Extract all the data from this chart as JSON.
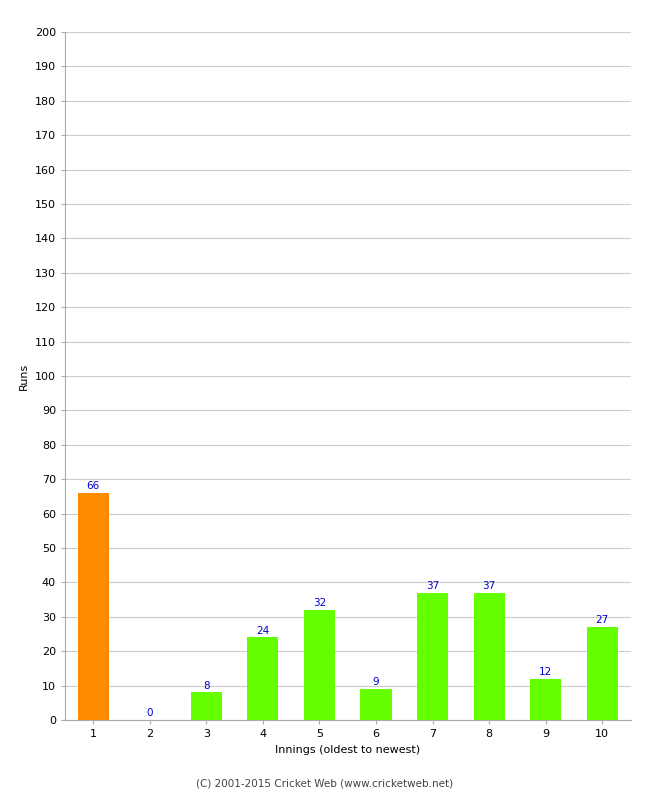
{
  "categories": [
    1,
    2,
    3,
    4,
    5,
    6,
    7,
    8,
    9,
    10
  ],
  "values": [
    66,
    0,
    8,
    24,
    32,
    9,
    37,
    37,
    12,
    27
  ],
  "bar_colors": [
    "#ff8c00",
    "#66ff00",
    "#66ff00",
    "#66ff00",
    "#66ff00",
    "#66ff00",
    "#66ff00",
    "#66ff00",
    "#66ff00",
    "#66ff00"
  ],
  "xlabel": "Innings (oldest to newest)",
  "ylabel": "Runs",
  "ylim": [
    0,
    200
  ],
  "yticks": [
    0,
    10,
    20,
    30,
    40,
    50,
    60,
    70,
    80,
    90,
    100,
    110,
    120,
    130,
    140,
    150,
    160,
    170,
    180,
    190,
    200
  ],
  "label_color": "#0000cc",
  "label_fontsize": 7.5,
  "axis_label_fontsize": 8,
  "tick_fontsize": 8,
  "footer": "(C) 2001-2015 Cricket Web (www.cricketweb.net)",
  "background_color": "#ffffff",
  "grid_color": "#cccccc",
  "bar_width": 0.55
}
